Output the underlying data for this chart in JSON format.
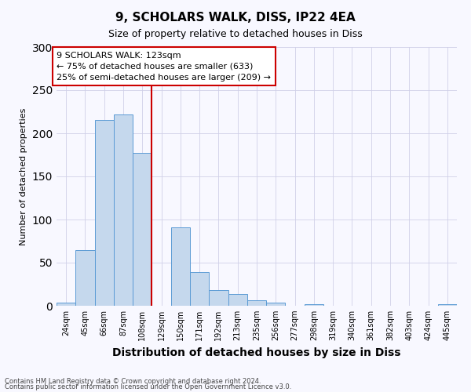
{
  "title": "9, SCHOLARS WALK, DISS, IP22 4EA",
  "subtitle": "Size of property relative to detached houses in Diss",
  "xlabel": "Distribution of detached houses by size in Diss",
  "ylabel": "Number of detached properties",
  "bin_labels": [
    "24sqm",
    "45sqm",
    "66sqm",
    "87sqm",
    "108sqm",
    "129sqm",
    "150sqm",
    "171sqm",
    "192sqm",
    "213sqm",
    "235sqm",
    "256sqm",
    "277sqm",
    "298sqm",
    "319sqm",
    "340sqm",
    "361sqm",
    "382sqm",
    "403sqm",
    "424sqm",
    "445sqm"
  ],
  "bar_values": [
    4,
    65,
    215,
    222,
    177,
    0,
    91,
    39,
    18,
    14,
    6,
    4,
    0,
    2,
    0,
    0,
    0,
    0,
    0,
    0,
    2
  ],
  "bar_color": "#c5d8ed",
  "bar_edge_color": "#5b9bd5",
  "annotation_box_color": "#ffffff",
  "annotation_box_edge_color": "#cc0000",
  "annotation_label": "9 SCHOLARS WALK: 123sqm",
  "annotation_line1": "← 75% of detached houses are smaller (633)",
  "annotation_line2": "25% of semi-detached houses are larger (209) →",
  "vline_color": "#cc0000",
  "vline_x": 4.5,
  "ylim": [
    0,
    300
  ],
  "yticks": [
    0,
    50,
    100,
    150,
    200,
    250,
    300
  ],
  "footnote1": "Contains HM Land Registry data © Crown copyright and database right 2024.",
  "footnote2": "Contains public sector information licensed under the Open Government Licence v3.0.",
  "background_color": "#f8f8ff",
  "grid_color": "#d0d0e8",
  "title_fontsize": 11,
  "subtitle_fontsize": 9,
  "xlabel_fontsize": 10,
  "ylabel_fontsize": 8,
  "tick_fontsize": 7,
  "annotation_fontsize": 8,
  "footnote_fontsize": 6
}
